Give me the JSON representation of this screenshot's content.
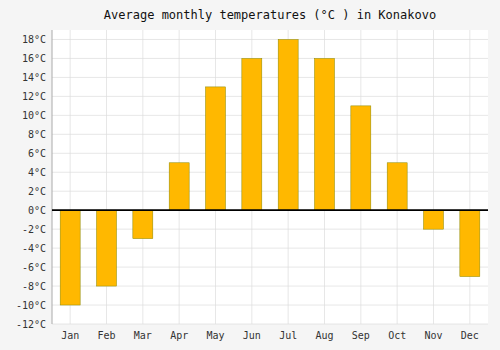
{
  "chart_data": {
    "type": "bar",
    "title": "Average monthly temperatures (°C ) in Konakovo",
    "categories": [
      "Jan",
      "Feb",
      "Mar",
      "Apr",
      "May",
      "Jun",
      "Jul",
      "Aug",
      "Sep",
      "Oct",
      "Nov",
      "Dec"
    ],
    "values": [
      -10,
      -8,
      -3,
      5,
      13,
      16,
      18,
      16,
      11,
      5,
      -2,
      -7
    ],
    "color": "#FFB800",
    "ylim": [
      -12,
      19
    ],
    "yticks": [
      {
        "value": -12,
        "label": "-12°C"
      },
      {
        "value": -10,
        "label": "-10°C"
      },
      {
        "value": -8,
        "label": "-8°C"
      },
      {
        "value": -6,
        "label": "-6°C"
      },
      {
        "value": -4,
        "label": "-4°C"
      },
      {
        "value": -2,
        "label": "-2°C"
      },
      {
        "value": 0,
        "label": "0°C"
      },
      {
        "value": 2,
        "label": "2°C"
      },
      {
        "value": 4,
        "label": "4°C"
      },
      {
        "value": 6,
        "label": "6°C"
      },
      {
        "value": 8,
        "label": "8°C"
      },
      {
        "value": 10,
        "label": "10°C"
      },
      {
        "value": 12,
        "label": "12°C"
      },
      {
        "value": 14,
        "label": "14°C"
      },
      {
        "value": 16,
        "label": "16°C"
      },
      {
        "value": 18,
        "label": "18°C"
      }
    ],
    "grid": true
  }
}
